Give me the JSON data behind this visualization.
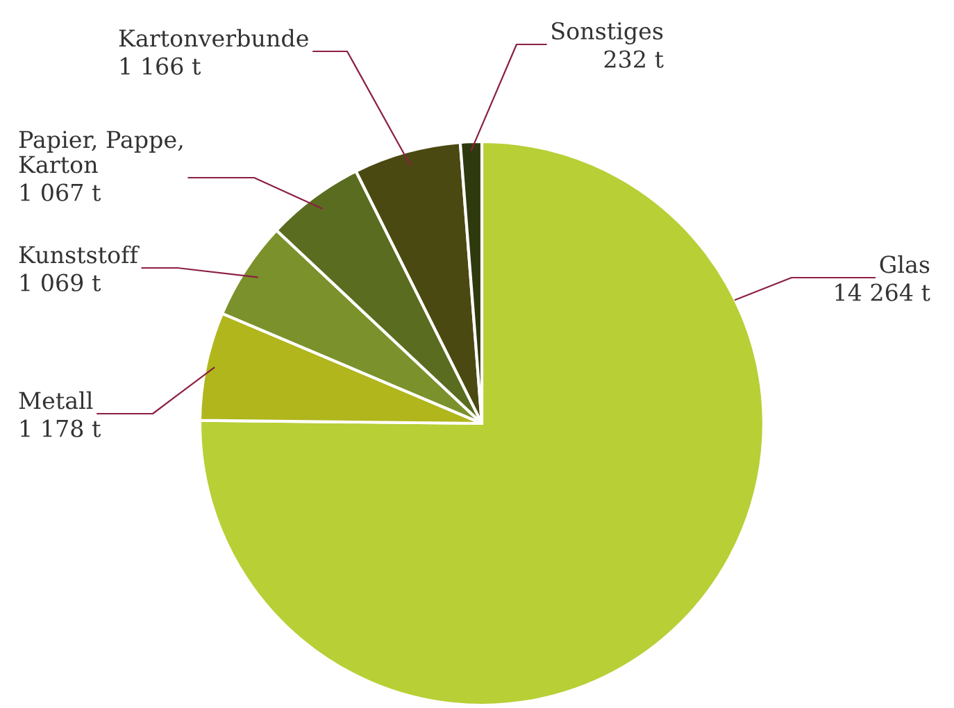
{
  "chart_data": {
    "type": "pie",
    "categories": [
      "Glas",
      "Metall",
      "Kunststoff",
      "Papier, Pappe,\nKarton",
      "Kartonverbunde",
      "Sonstiges"
    ],
    "values": [
      14264,
      1178,
      1069,
      1067,
      1166,
      232
    ],
    "value_labels": [
      "14 264 t",
      "1 178 t",
      "1 069 t",
      "1 067 t",
      "1 166 t",
      "232 t"
    ],
    "colors": [
      "#b8cf36",
      "#b0b61c",
      "#7b912c",
      "#5a6c20",
      "#4b4912",
      "#2e3a0e"
    ]
  }
}
